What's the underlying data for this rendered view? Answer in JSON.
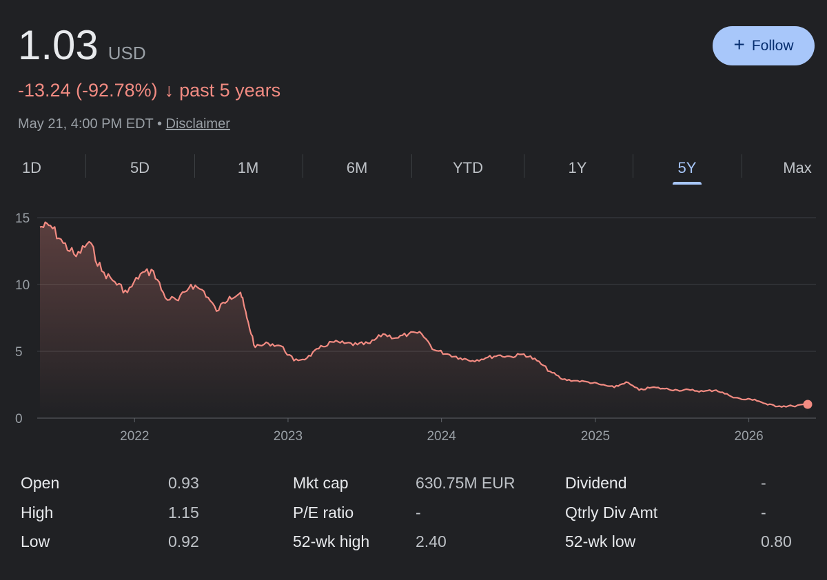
{
  "header": {
    "price": "1.03",
    "currency": "USD",
    "change": "-13.24 (-92.78%)",
    "change_arrow": "↓",
    "change_period": "past 5 years",
    "timestamp": "May 21, 4:00 PM EDT",
    "separator": "•",
    "disclaimer": "Disclaimer",
    "follow_icon": "+",
    "follow_label": "Follow"
  },
  "tabs": [
    {
      "label": "1D"
    },
    {
      "label": "5D"
    },
    {
      "label": "1M"
    },
    {
      "label": "6M"
    },
    {
      "label": "YTD"
    },
    {
      "label": "1Y"
    },
    {
      "label": "5Y",
      "active": true
    },
    {
      "label": "Max"
    }
  ],
  "colors": {
    "line": "#f28b82",
    "accent": "#a8c7fa",
    "background": "#202124"
  },
  "chart_data": {
    "type": "line",
    "title": "",
    "xlabel": "",
    "ylabel": "",
    "ylim": [
      0,
      15
    ],
    "yticks": [
      "0",
      "5",
      "10",
      "15"
    ],
    "xticks": [
      "2022",
      "2023",
      "2024",
      "2025",
      "2026"
    ],
    "grid": true,
    "x": [
      "2021-05-21",
      "2021-06-15",
      "2021-07-15",
      "2021-08-15",
      "2021-09-15",
      "2021-10-15",
      "2021-11-15",
      "2021-12-15",
      "2022-01-15",
      "2022-02-15",
      "2022-03-15",
      "2022-04-15",
      "2022-05-15",
      "2022-06-15",
      "2022-07-15",
      "2022-08-15",
      "2022-09-10",
      "2022-09-25",
      "2022-10-15",
      "2022-11-15",
      "2022-12-15",
      "2023-01-15",
      "2023-02-15",
      "2023-03-15",
      "2023-04-15",
      "2023-05-15",
      "2023-06-15",
      "2023-07-15",
      "2023-08-15",
      "2023-09-15",
      "2023-10-15",
      "2023-11-15",
      "2023-12-15",
      "2024-01-15",
      "2024-02-15",
      "2024-03-15",
      "2024-04-15",
      "2024-05-15",
      "2024-06-15",
      "2024-07-15",
      "2024-08-15",
      "2024-09-15",
      "2024-10-15",
      "2024-11-15",
      "2024-12-15",
      "2025-01-15",
      "2025-02-15",
      "2025-03-15",
      "2025-04-15",
      "2025-05-15",
      "2025-06-15",
      "2025-07-15",
      "2025-08-15",
      "2025-09-15",
      "2025-10-15",
      "2025-11-15",
      "2025-12-15",
      "2026-01-15",
      "2026-02-15",
      "2026-03-15",
      "2026-04-15",
      "2026-05-21"
    ],
    "series": [
      {
        "values": [
          14.3,
          14.4,
          13.1,
          12.1,
          13.2,
          11.0,
          10.2,
          9.4,
          10.8,
          11.0,
          9.0,
          8.8,
          10.0,
          9.5,
          8.0,
          9.1,
          9.4,
          7.5,
          5.3,
          5.6,
          5.4,
          4.3,
          4.5,
          5.2,
          5.7,
          5.6,
          5.5,
          5.6,
          6.3,
          6.0,
          6.3,
          6.3,
          5.1,
          4.8,
          4.5,
          4.3,
          4.5,
          4.7,
          4.6,
          4.8,
          4.3,
          3.5,
          2.9,
          2.8,
          2.7,
          2.5,
          2.3,
          2.7,
          2.1,
          2.3,
          2.2,
          2.1,
          2.1,
          2.0,
          2.1,
          1.7,
          1.4,
          1.4,
          1.0,
          0.9,
          0.9,
          1.03
        ]
      }
    ]
  },
  "stats": [
    {
      "label": "Open",
      "value": "0.93"
    },
    {
      "label": "High",
      "value": "1.15"
    },
    {
      "label": "Low",
      "value": "0.92"
    },
    {
      "label": "Mkt cap",
      "value": "630.75M EUR"
    },
    {
      "label": "P/E ratio",
      "value": "-"
    },
    {
      "label": "52-wk high",
      "value": "2.40"
    },
    {
      "label": "Dividend",
      "value": "-"
    },
    {
      "label": "Qtrly Div Amt",
      "value": "-"
    },
    {
      "label": "52-wk low",
      "value": "0.80"
    }
  ]
}
